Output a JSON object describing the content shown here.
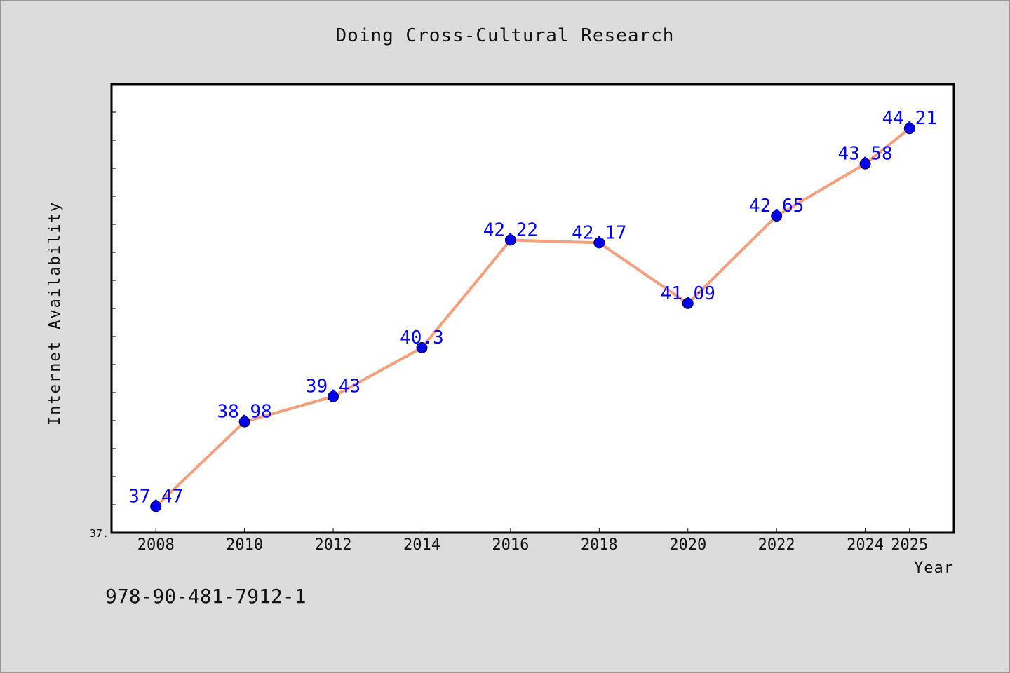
{
  "chart_data": {
    "type": "line",
    "title": "Doing Cross-Cultural Research",
    "xlabel": "Year",
    "ylabel": "Internet Availability",
    "categories": [
      "2008",
      "2010",
      "2012",
      "2014",
      "2016",
      "2018",
      "2020",
      "2022",
      "2024",
      "2025"
    ],
    "series": [
      {
        "values": [
          37.47,
          38.98,
          39.43,
          40.3,
          42.22,
          42.17,
          41.09,
          42.65,
          43.58,
          44.21
        ],
        "data_labels": [
          "37.47",
          "38.98",
          "39.43",
          "40.3",
          "42.22",
          "42.17",
          "41.09",
          "42.65",
          "43.58",
          "44.21"
        ]
      }
    ],
    "ylim": [
      37.0,
      45.0
    ],
    "y_tick_label": "37.",
    "grid": false,
    "legend": "none",
    "line_color": "#f4a07c",
    "marker_color": "#0000ee",
    "label_color": "#0000ff"
  },
  "footer": {
    "isbn": "978-90-481-7912-1"
  }
}
